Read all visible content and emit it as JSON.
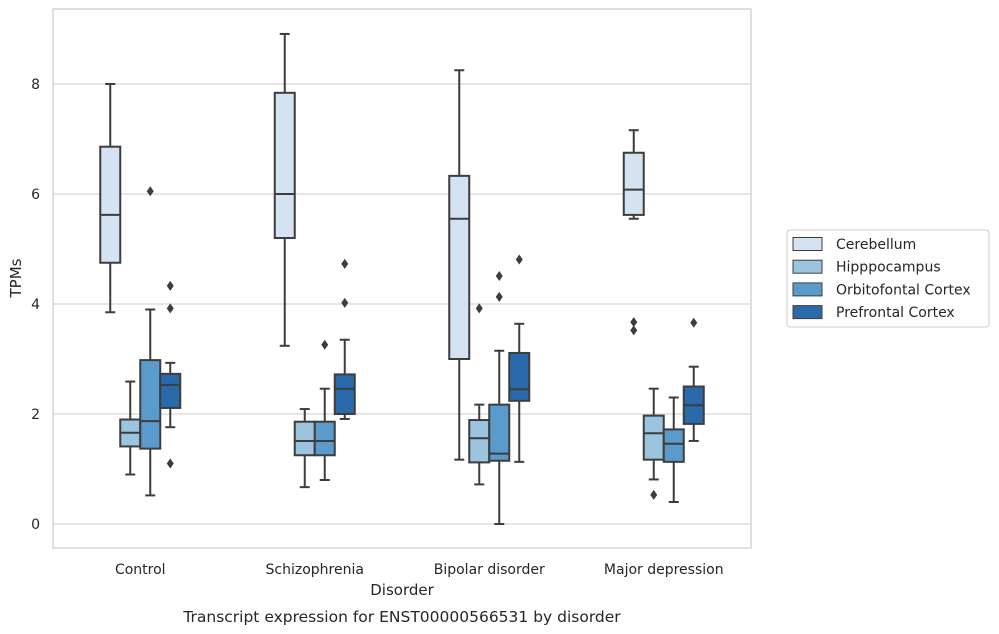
{
  "chart_data": {
    "type": "box",
    "caption": "Transcript expression for ENST00000566531 by disorder",
    "xlabel": "Disorder",
    "ylabel": "TPMs",
    "ylim": [
      -0.4,
      9.35
    ],
    "yticks": [
      0,
      2,
      4,
      6,
      8
    ],
    "grid": "horizontal",
    "legend_position": "right",
    "categories": [
      "Control",
      "Schizophrenia",
      "Bipolar disorder",
      "Major depression"
    ],
    "series": [
      {
        "name": "Cerebellum",
        "color": "#d4e2f1",
        "boxes": [
          {
            "whisker_low": 3.85,
            "q1": 4.75,
            "median": 5.62,
            "q3": 6.86,
            "whisker_high": 8.0,
            "outliers": []
          },
          {
            "whisker_low": 3.24,
            "q1": 5.2,
            "median": 6.0,
            "q3": 7.84,
            "whisker_high": 8.91,
            "outliers": []
          },
          {
            "whisker_low": 1.17,
            "q1": 3.0,
            "median": 5.55,
            "q3": 6.33,
            "whisker_high": 8.25,
            "outliers": []
          },
          {
            "whisker_low": 5.55,
            "q1": 5.62,
            "median": 6.08,
            "q3": 6.75,
            "whisker_high": 7.16,
            "outliers": [
              3.67,
              3.52
            ]
          }
        ]
      },
      {
        "name": "Hipppocampus",
        "color": "#9dc4de",
        "boxes": [
          {
            "whisker_low": 0.9,
            "q1": 1.41,
            "median": 1.66,
            "q3": 1.9,
            "whisker_high": 2.59,
            "outliers": []
          },
          {
            "whisker_low": 0.67,
            "q1": 1.25,
            "median": 1.51,
            "q3": 1.86,
            "whisker_high": 2.09,
            "outliers": []
          },
          {
            "whisker_low": 0.72,
            "q1": 1.12,
            "median": 1.56,
            "q3": 1.89,
            "whisker_high": 2.17,
            "outliers": [
              3.92
            ]
          },
          {
            "whisker_low": 0.81,
            "q1": 1.17,
            "median": 1.65,
            "q3": 1.97,
            "whisker_high": 2.46,
            "outliers": [
              0.53
            ]
          }
        ]
      },
      {
        "name": "Orbitofontal Cortex",
        "color": "#5b9bcb",
        "boxes": [
          {
            "whisker_low": 0.52,
            "q1": 1.37,
            "median": 1.87,
            "q3": 2.98,
            "whisker_high": 3.9,
            "outliers": [
              6.05
            ]
          },
          {
            "whisker_low": 0.8,
            "q1": 1.25,
            "median": 1.51,
            "q3": 1.86,
            "whisker_high": 2.46,
            "outliers": [
              3.26
            ]
          },
          {
            "whisker_low": 0.0,
            "q1": 1.15,
            "median": 1.28,
            "q3": 2.17,
            "whisker_high": 3.15,
            "outliers": [
              4.51,
              4.13
            ]
          },
          {
            "whisker_low": 0.4,
            "q1": 1.13,
            "median": 1.46,
            "q3": 1.72,
            "whisker_high": 2.3,
            "outliers": []
          }
        ]
      },
      {
        "name": "Prefrontal Cortex",
        "color": "#2a6aab",
        "boxes": [
          {
            "whisker_low": 1.76,
            "q1": 2.11,
            "median": 2.53,
            "q3": 2.73,
            "whisker_high": 2.93,
            "outliers": [
              4.33,
              3.92,
              1.1
            ]
          },
          {
            "whisker_low": 1.91,
            "q1": 2.0,
            "median": 2.46,
            "q3": 2.72,
            "whisker_high": 3.35,
            "outliers": [
              4.73,
              4.02
            ]
          },
          {
            "whisker_low": 1.13,
            "q1": 2.24,
            "median": 2.45,
            "q3": 3.11,
            "whisker_high": 3.64,
            "outliers": [
              4.81
            ]
          },
          {
            "whisker_low": 1.51,
            "q1": 1.82,
            "median": 2.16,
            "q3": 2.5,
            "whisker_high": 2.86,
            "outliers": [
              3.66
            ]
          }
        ]
      }
    ]
  }
}
